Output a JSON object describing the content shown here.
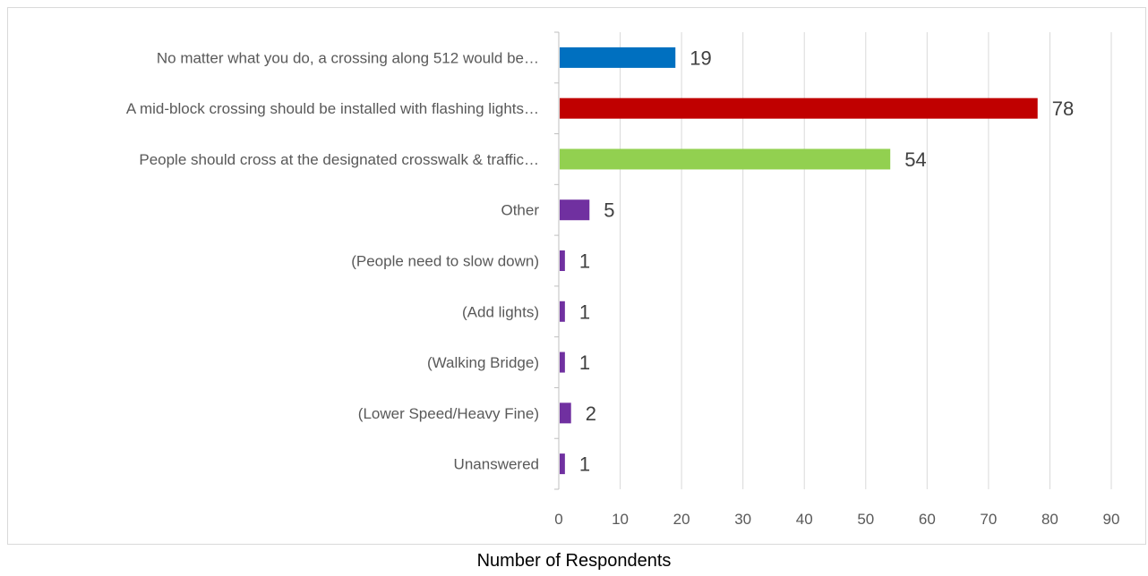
{
  "chart_data": {
    "type": "bar",
    "orientation": "horizontal",
    "title": "",
    "xlabel": "Number of Respondents",
    "ylabel": "",
    "xlim": [
      0,
      90
    ],
    "xticks": [
      "0",
      "10",
      "20",
      "30",
      "40",
      "50",
      "60",
      "70",
      "80",
      "90"
    ],
    "grid": "vertical",
    "categories": [
      "No matter what you do, a crossing along 512 would be…",
      "A mid-block crossing should be installed with flashing lights…",
      "People should cross at the designated crosswalk & traffic…",
      "Other",
      "(People need to slow down)",
      "(Add lights)",
      "(Walking Bridge)",
      "(Lower Speed/Heavy Fine)",
      "Unanswered"
    ],
    "values": [
      19,
      78,
      54,
      5,
      1,
      1,
      1,
      2,
      1
    ],
    "data_labels": [
      "19",
      "78",
      "54",
      "5",
      "1",
      "1",
      "1",
      "2",
      "1"
    ],
    "colors": [
      "#0070C0",
      "#C00000",
      "#92D050",
      "#7030A0",
      "#7030A0",
      "#7030A0",
      "#7030A0",
      "#7030A0",
      "#7030A0"
    ]
  }
}
